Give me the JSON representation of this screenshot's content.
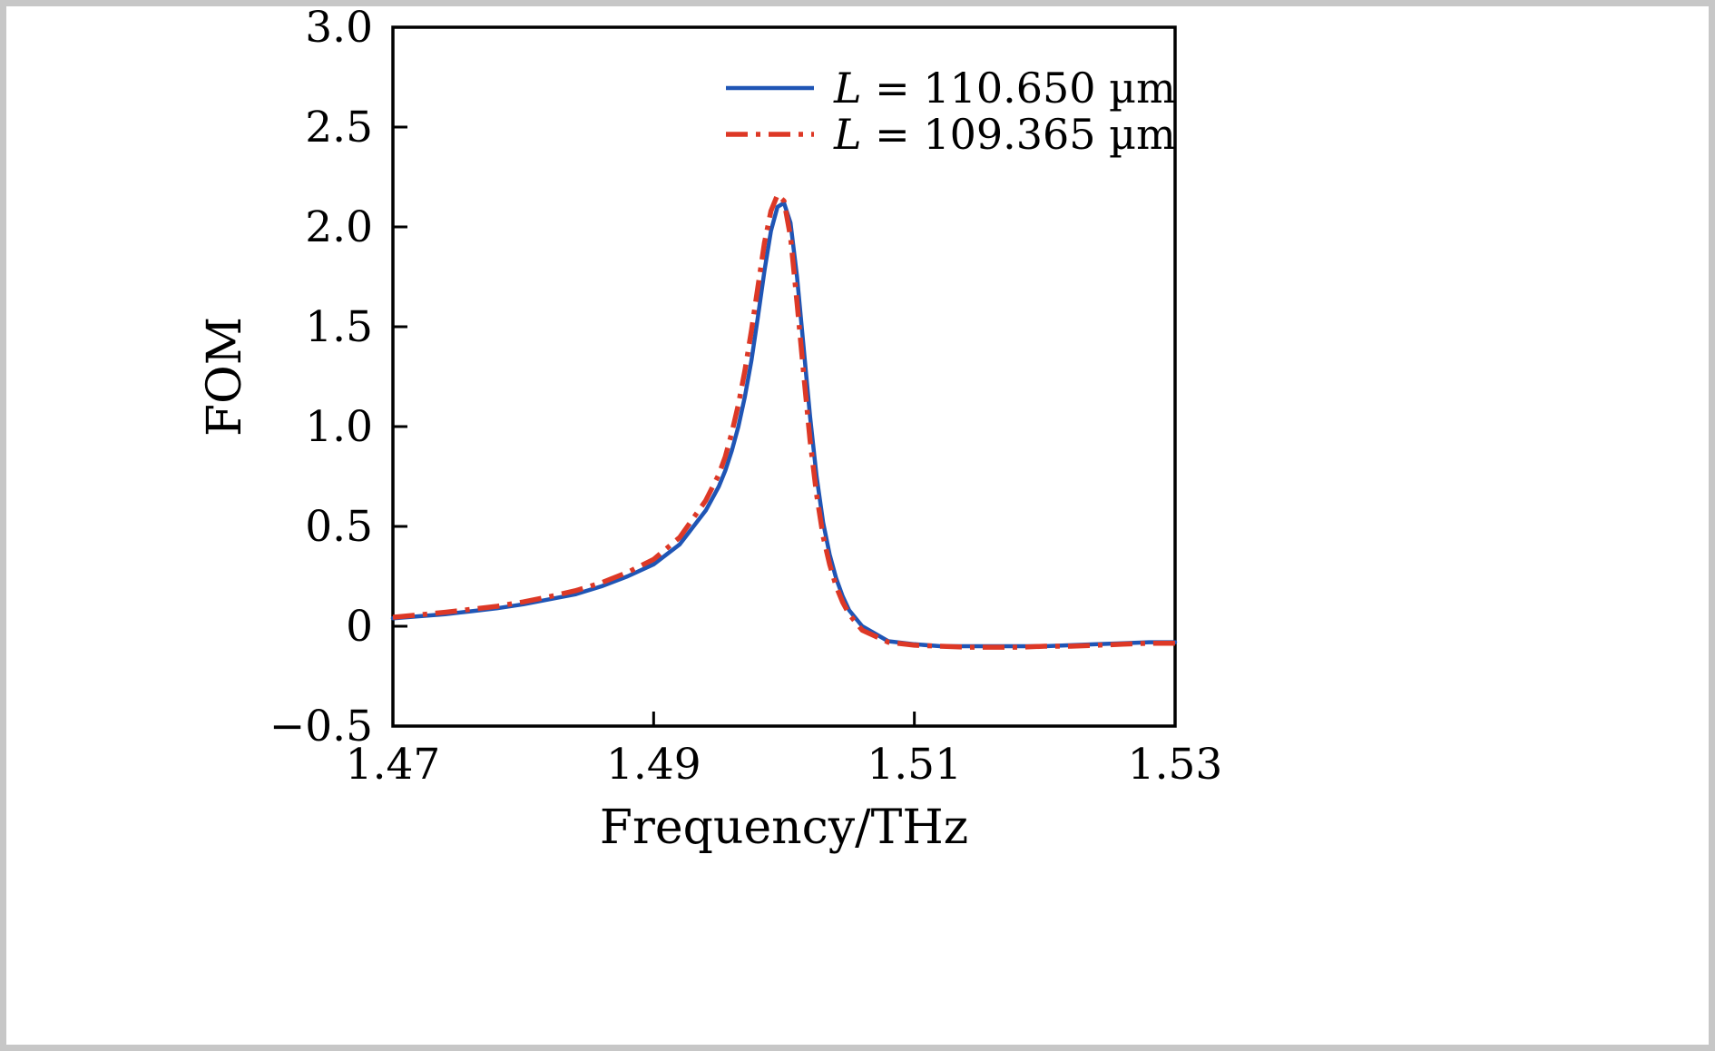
{
  "figure": {
    "background": "#ffffff",
    "border_color": "#c7c7c7"
  },
  "chart_data": {
    "type": "line",
    "title": "",
    "xlabel": "Frequency/THz",
    "ylabel": "FOM",
    "xlim": [
      1.47,
      1.53
    ],
    "ylim": [
      -0.5,
      3.0
    ],
    "grid": false,
    "legend_position": "upper right inside",
    "x_ticks": [
      1.47,
      1.49,
      1.51,
      1.53
    ],
    "x_tick_labels": [
      "1.47",
      "1.49",
      "1.51",
      "1.53"
    ],
    "y_ticks": [
      -0.5,
      0,
      0.5,
      1.0,
      1.5,
      2.0,
      2.5,
      3.0
    ],
    "y_tick_labels": [
      "−0.5",
      "0",
      "0.5",
      "1.0",
      "1.5",
      "2.0",
      "2.5",
      "3.0"
    ],
    "x": [
      1.47,
      1.472,
      1.474,
      1.476,
      1.478,
      1.48,
      1.482,
      1.484,
      1.486,
      1.488,
      1.49,
      1.492,
      1.494,
      1.495,
      1.4955,
      1.496,
      1.4965,
      1.497,
      1.4975,
      1.498,
      1.4985,
      1.499,
      1.4995,
      1.5,
      1.5005,
      1.501,
      1.5015,
      1.502,
      1.5025,
      1.503,
      1.5035,
      1.504,
      1.5045,
      1.505,
      1.506,
      1.508,
      1.51,
      1.512,
      1.514,
      1.516,
      1.518,
      1.52,
      1.522,
      1.524,
      1.526,
      1.528,
      1.53
    ],
    "series": [
      {
        "name": "L = 110.650 µm",
        "symbol": "L",
        "label_rest": " = 110.650 µm",
        "color": "#1f55b5",
        "style": "solid",
        "values": [
          0.04,
          0.05,
          0.06,
          0.075,
          0.09,
          0.11,
          0.135,
          0.16,
          0.2,
          0.25,
          0.31,
          0.41,
          0.58,
          0.7,
          0.78,
          0.88,
          1.0,
          1.15,
          1.33,
          1.55,
          1.78,
          1.98,
          2.1,
          2.12,
          2.02,
          1.75,
          1.4,
          1.05,
          0.75,
          0.52,
          0.36,
          0.24,
          0.15,
          0.08,
          0.0,
          -0.075,
          -0.09,
          -0.1,
          -0.1,
          -0.1,
          -0.1,
          -0.1,
          -0.095,
          -0.09,
          -0.085,
          -0.08,
          -0.08
        ]
      },
      {
        "name": "L = 109.365 µm",
        "symbol": "L",
        "label_rest": " = 109.365 µm",
        "color": "#dd3826",
        "style": "dash-dot",
        "values": [
          0.045,
          0.057,
          0.07,
          0.085,
          0.1,
          0.122,
          0.148,
          0.178,
          0.218,
          0.27,
          0.335,
          0.445,
          0.63,
          0.76,
          0.85,
          0.97,
          1.11,
          1.28,
          1.48,
          1.7,
          1.92,
          2.08,
          2.16,
          2.13,
          1.95,
          1.62,
          1.27,
          0.93,
          0.66,
          0.45,
          0.31,
          0.2,
          0.12,
          0.06,
          -0.02,
          -0.08,
          -0.095,
          -0.1,
          -0.105,
          -0.105,
          -0.105,
          -0.1,
          -0.1,
          -0.095,
          -0.09,
          -0.085,
          -0.085
        ]
      }
    ]
  }
}
